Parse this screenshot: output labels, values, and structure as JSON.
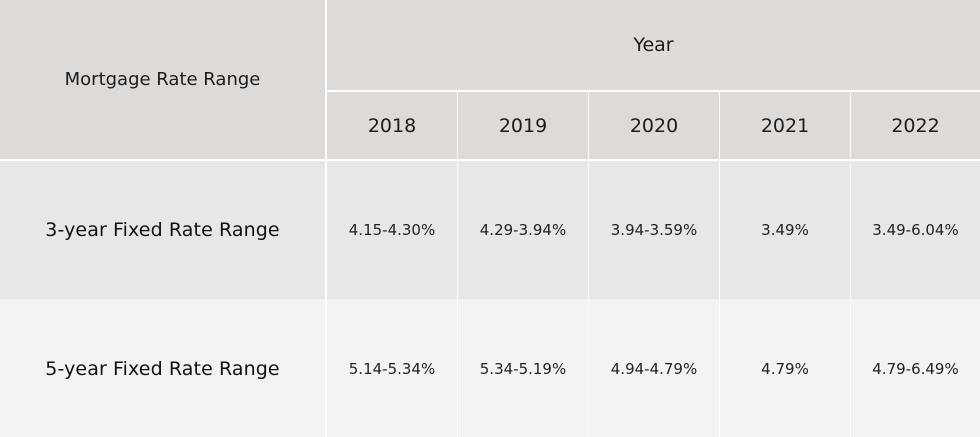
{
  "table": {
    "row_header_label": "Mortgage Rate Range",
    "column_group_label": "Year",
    "years": [
      "2018",
      "2019",
      "2020",
      "2021",
      "2022"
    ],
    "rows": [
      {
        "label": "3-year Fixed Rate Range",
        "values": [
          "4.15-4.30%",
          "4.29-3.94%",
          "3.94-3.59%",
          "3.49%",
          "3.49-6.04%"
        ]
      },
      {
        "label": "5-year Fixed Rate Range",
        "values": [
          "5.14-5.34%",
          "5.34-5.19%",
          "4.94-4.79%",
          "4.79%",
          "4.79-6.49%"
        ]
      }
    ]
  }
}
